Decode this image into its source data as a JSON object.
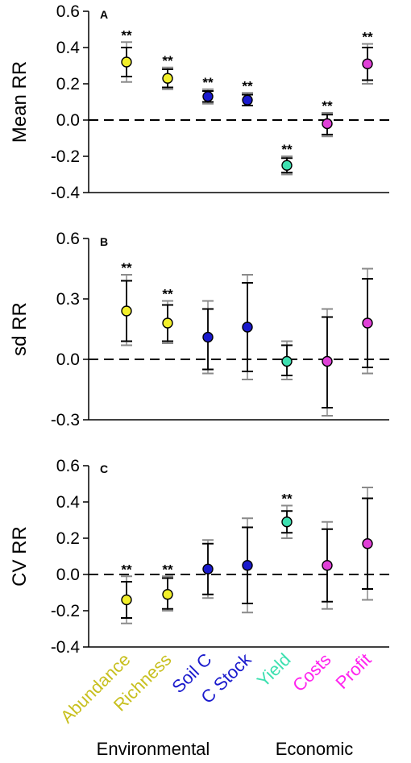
{
  "chart_data": [
    {
      "type": "scatter",
      "panel": "A",
      "ylabel": "Mean RR",
      "ylim": [
        -0.4,
        0.6
      ],
      "yticks": [
        -0.4,
        -0.2,
        0.0,
        0.2,
        0.4,
        0.6
      ],
      "ytick_labels": [
        "-0.4",
        "-0.2",
        "0.0",
        "0.2",
        "0.4",
        "0.6"
      ],
      "reference_line": 0,
      "categories": [
        "Abundance",
        "Richness",
        "Soil C",
        "C Stock",
        "Yield",
        "Costs",
        "Profit"
      ],
      "values": [
        0.32,
        0.23,
        0.13,
        0.11,
        -0.25,
        -0.02,
        0.31
      ],
      "ci_inner": [
        [
          0.24,
          0.4
        ],
        [
          0.18,
          0.28
        ],
        [
          0.1,
          0.16
        ],
        [
          0.08,
          0.14
        ],
        [
          -0.29,
          -0.21
        ],
        [
          -0.08,
          0.03
        ],
        [
          0.22,
          0.4
        ]
      ],
      "ci_outer": [
        [
          0.21,
          0.43
        ],
        [
          0.17,
          0.29
        ],
        [
          0.09,
          0.17
        ],
        [
          0.08,
          0.15
        ],
        [
          -0.3,
          -0.2
        ],
        [
          -0.09,
          0.04
        ],
        [
          0.2,
          0.42
        ]
      ],
      "significance": [
        "**",
        "**",
        "**",
        "**",
        "**",
        "**",
        "**"
      ]
    },
    {
      "type": "scatter",
      "panel": "B",
      "ylabel": "sd RR",
      "ylim": [
        -0.3,
        0.6
      ],
      "yticks": [
        -0.3,
        0.0,
        0.3,
        0.6
      ],
      "ytick_labels": [
        "-0.3",
        "0.0",
        "0.3",
        "0.6"
      ],
      "reference_line": 0,
      "categories": [
        "Abundance",
        "Richness",
        "Soil C",
        "C Stock",
        "Yield",
        "Costs",
        "Profit"
      ],
      "values": [
        0.24,
        0.18,
        0.11,
        0.16,
        -0.01,
        -0.01,
        0.18
      ],
      "ci_inner": [
        [
          0.09,
          0.39
        ],
        [
          0.09,
          0.27
        ],
        [
          -0.05,
          0.25
        ],
        [
          -0.06,
          0.38
        ],
        [
          -0.08,
          0.07
        ],
        [
          -0.24,
          0.21
        ],
        [
          -0.04,
          0.4
        ]
      ],
      "ci_outer": [
        [
          0.07,
          0.42
        ],
        [
          0.08,
          0.29
        ],
        [
          -0.07,
          0.29
        ],
        [
          -0.1,
          0.42
        ],
        [
          -0.1,
          0.09
        ],
        [
          -0.28,
          0.25
        ],
        [
          -0.07,
          0.45
        ]
      ],
      "significance": [
        "**",
        "**",
        "",
        "",
        "",
        "",
        ""
      ]
    },
    {
      "type": "scatter",
      "panel": "C",
      "ylabel": "CV RR",
      "ylim": [
        -0.4,
        0.6
      ],
      "yticks": [
        -0.4,
        -0.2,
        0.0,
        0.2,
        0.4,
        0.6
      ],
      "ytick_labels": [
        "-0.4",
        "-0.2",
        "0.0",
        "0.2",
        "0.4",
        "0.6"
      ],
      "reference_line": 0,
      "categories": [
        "Abundance",
        "Richness",
        "Soil C",
        "C Stock",
        "Yield",
        "Costs",
        "Profit"
      ],
      "values": [
        -0.14,
        -0.11,
        0.03,
        0.05,
        0.29,
        0.05,
        0.17
      ],
      "ci_inner": [
        [
          -0.24,
          -0.04
        ],
        [
          -0.19,
          -0.02
        ],
        [
          -0.11,
          0.17
        ],
        [
          -0.16,
          0.26
        ],
        [
          0.23,
          0.35
        ],
        [
          -0.15,
          0.25
        ],
        [
          -0.08,
          0.42
        ]
      ],
      "ci_outer": [
        [
          -0.27,
          -0.01
        ],
        [
          -0.2,
          -0.01
        ],
        [
          -0.13,
          0.19
        ],
        [
          -0.21,
          0.31
        ],
        [
          0.2,
          0.38
        ],
        [
          -0.19,
          0.29
        ],
        [
          -0.14,
          0.48
        ]
      ],
      "significance": [
        "**",
        "**",
        "",
        "",
        "**",
        "",
        ""
      ]
    }
  ],
  "categories": [
    "Abundance",
    "Richness",
    "Soil C",
    "C Stock",
    "Yield",
    "Costs",
    "Profit"
  ],
  "category_colors": [
    "#c8c020",
    "#c8c020",
    "#1a1acd",
    "#1a1acd",
    "#3de0b0",
    "#ff22ee",
    "#ff22ee"
  ],
  "marker_colors": [
    "#f2ef2a",
    "#f2ef2a",
    "#1a1acd",
    "#1a1acd",
    "#3de0b0",
    "#e040d8",
    "#e040d8"
  ],
  "inner_ci_color": "#000000",
  "outer_ci_color": "#8a8a8a",
  "groups": [
    {
      "label": "Environmental"
    },
    {
      "label": "Economic"
    }
  ]
}
